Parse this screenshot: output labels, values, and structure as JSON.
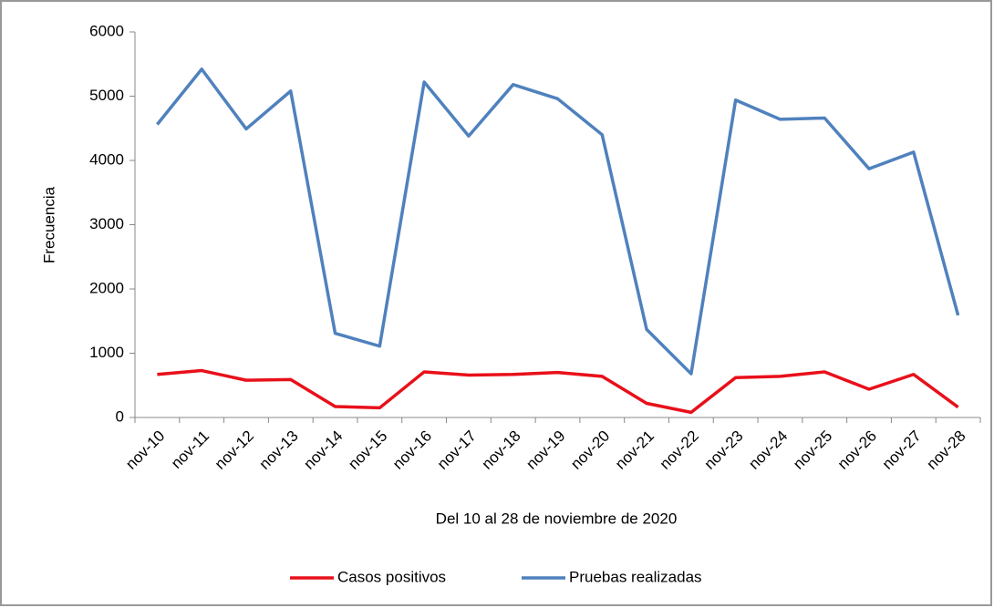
{
  "chart_data": {
    "type": "line",
    "x_label": "Del 10 al 28 de noviembre de 2020",
    "y_label": "Frecuencia",
    "categories": [
      "nov-10",
      "nov-11",
      "nov-12",
      "nov-13",
      "nov-14",
      "nov-15",
      "nov-16",
      "nov-17",
      "nov-18",
      "nov-19",
      "nov-20",
      "nov-21",
      "nov-22",
      "nov-23",
      "nov-24",
      "nov-25",
      "nov-26",
      "nov-27",
      "nov-28"
    ],
    "series": [
      {
        "name": "Casos positivos",
        "color": "#e8101a",
        "values": [
          670,
          730,
          580,
          590,
          170,
          150,
          710,
          660,
          670,
          700,
          640,
          220,
          80,
          620,
          640,
          710,
          440,
          670,
          160
        ]
      },
      {
        "name": "Pruebas realizadas",
        "color": "#4f81bd",
        "values": [
          4560,
          5420,
          4490,
          5080,
          1310,
          1110,
          5220,
          4380,
          5180,
          4960,
          4400,
          1370,
          680,
          4940,
          4640,
          4660,
          3870,
          4130,
          1590
        ]
      }
    ],
    "ylim": [
      0,
      6000
    ],
    "yticks": [
      0,
      1000,
      2000,
      3000,
      4000,
      5000,
      6000
    ],
    "grid": false,
    "legend": "bottom"
  }
}
